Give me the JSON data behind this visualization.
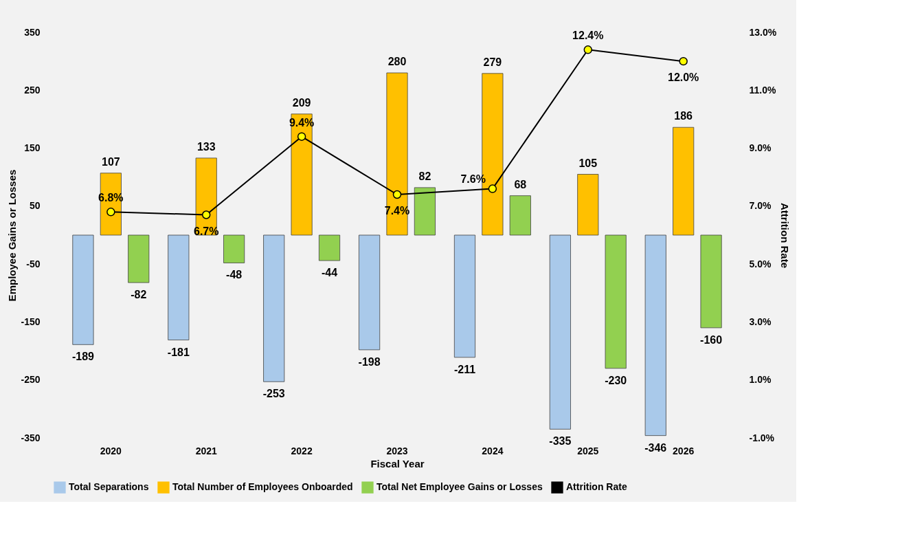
{
  "chart_data": {
    "type": "bar",
    "xlabel": "Fiscal Year",
    "ylabel": "Employee Gains or Losses",
    "y2label": "Attrition Rate",
    "categories": [
      "2020",
      "2021",
      "2022",
      "2023",
      "2024",
      "2025",
      "2026"
    ],
    "series": [
      {
        "name": "Total Separations",
        "color": "#a9c9ea",
        "values": [
          -189,
          -181,
          -253,
          -198,
          -211,
          -335,
          -346
        ]
      },
      {
        "name": "Total Number of Employees Onboarded",
        "color": "#ffc000",
        "values": [
          107,
          133,
          209,
          280,
          279,
          105,
          186
        ]
      },
      {
        "name": "Total Net Employee Gains or Losses",
        "color": "#92d050",
        "values": [
          -82,
          -48,
          -44,
          82,
          68,
          -230,
          -160
        ]
      },
      {
        "name": "Attrition Rate",
        "type": "line",
        "axis": "y2",
        "color": "#000000",
        "marker": "circle",
        "colors": [
          "#ffff00",
          "#ffff00",
          "#ffff00",
          "#ffff00",
          "#ffff00",
          "#ffff00",
          "#ffff00"
        ],
        "values": [
          6.8,
          6.7,
          9.4,
          7.4,
          7.6,
          12.4,
          12.0
        ],
        "value_labels": [
          "6.8%",
          "6.7%",
          "9.4%",
          "7.4%",
          "7.6%",
          "12.4%",
          "12.0%"
        ]
      }
    ],
    "data_labels": true,
    "legend": "bottom",
    "grid": false,
    "ylim": [
      -350,
      350
    ],
    "yticks": [
      -350,
      -250,
      -150,
      -50,
      50,
      150,
      250,
      350
    ],
    "y2lim": [
      -1,
      13
    ],
    "y2ticks": [
      {
        "value": -1,
        "label": "-1.0%"
      },
      {
        "value": 1,
        "label": "1.0%"
      },
      {
        "value": 3,
        "label": "3.0%"
      },
      {
        "value": 5,
        "label": "5.0%"
      },
      {
        "value": 7,
        "label": "7.0%"
      },
      {
        "value": 9,
        "label": "9.0%"
      },
      {
        "value": 11,
        "label": "11.0%"
      },
      {
        "value": 13,
        "label": "13.0%"
      }
    ]
  }
}
